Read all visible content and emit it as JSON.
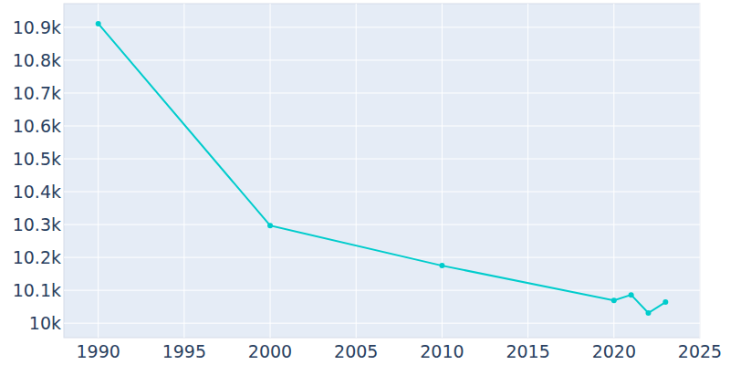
{
  "chart_data": {
    "type": "line",
    "x": [
      1990,
      2000,
      2010,
      2020,
      2021,
      2022,
      2023
    ],
    "values": [
      10911,
      10297,
      10175,
      10069,
      10086,
      10031,
      10064
    ],
    "color": "#00cccc",
    "marker": "circle",
    "xlim": [
      1988,
      2025
    ],
    "ylim": [
      9956,
      10972
    ],
    "xticks": [
      1990,
      1995,
      2000,
      2005,
      2010,
      2015,
      2020,
      2025
    ],
    "yticks": [
      {
        "value": 10000,
        "label": "10k"
      },
      {
        "value": 10100,
        "label": "10.1k"
      },
      {
        "value": 10200,
        "label": "10.2k"
      },
      {
        "value": 10300,
        "label": "10.3k"
      },
      {
        "value": 10400,
        "label": "10.4k"
      },
      {
        "value": 10500,
        "label": "10.5k"
      },
      {
        "value": 10600,
        "label": "10.6k"
      },
      {
        "value": 10700,
        "label": "10.7k"
      },
      {
        "value": 10800,
        "label": "10.8k"
      },
      {
        "value": 10900,
        "label": "10.9k"
      }
    ],
    "grid": true
  }
}
